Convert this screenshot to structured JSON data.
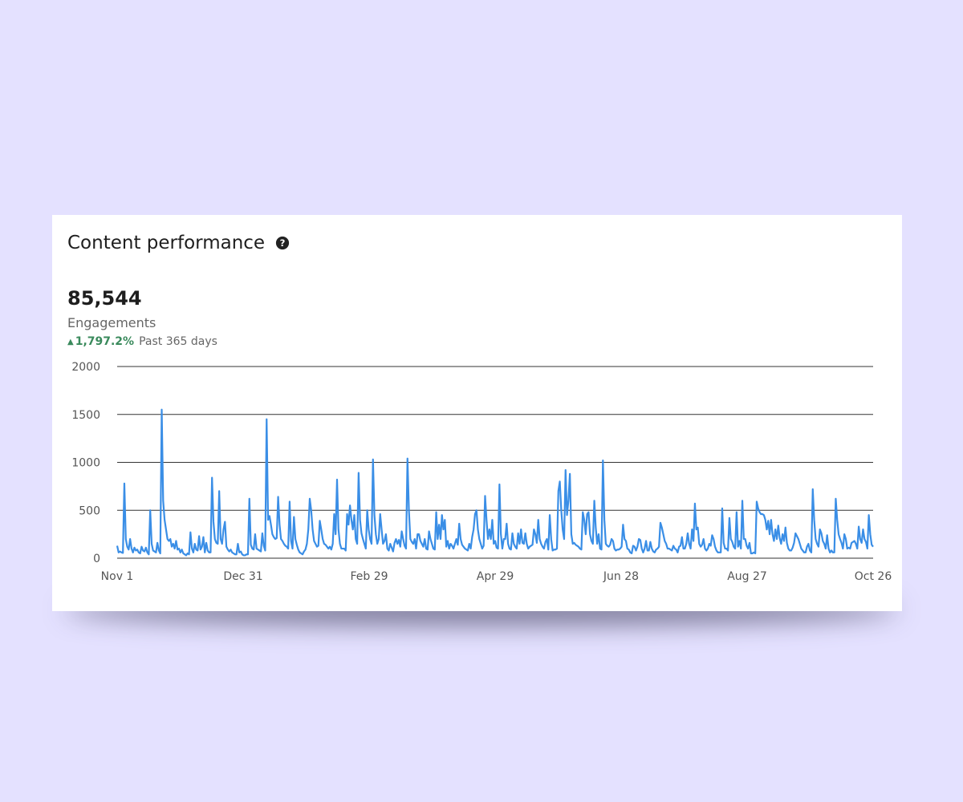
{
  "card": {
    "title": "Content performance",
    "help_icon": "question-circle-icon",
    "metric_value": "85,544",
    "metric_label": "Engagements",
    "change_icon": "triangle-up-icon",
    "change_value": "1,797.2%",
    "change_period": "Past 365 days"
  },
  "colors": {
    "line": "#3a8ee6",
    "positive": "#3a8a5c",
    "gridline": "#333333",
    "page_background": "#e4e1ff"
  },
  "chart_data": {
    "type": "line",
    "title": "",
    "xlabel": "",
    "ylabel": "",
    "ylim": [
      0,
      2000
    ],
    "yticks": [
      "0",
      "500",
      "1000",
      "1500",
      "2000"
    ],
    "xticks": [
      "Nov 1",
      "Dec 31",
      "Feb 29",
      "Apr 29",
      "Jun 28",
      "Aug 27",
      "Oct 26"
    ],
    "x_start": "Nov 1",
    "x_end": "Oct 26",
    "grid": true,
    "legend": "none",
    "series": [
      {
        "values": [
          130,
          60,
          70,
          60,
          55,
          780,
          200,
          120,
          90,
          200,
          100,
          60,
          110,
          80,
          90,
          60,
          50,
          120,
          80,
          70,
          110,
          60,
          40,
          500,
          150,
          80,
          70,
          60,
          160,
          80,
          50,
          1550,
          600,
          400,
          300,
          200,
          180,
          200,
          120,
          150,
          100,
          180,
          90,
          100,
          60,
          90,
          50,
          40,
          30,
          50,
          40,
          270,
          100,
          60,
          150,
          90,
          80,
          230,
          90,
          120,
          220,
          60,
          160,
          80,
          60,
          60,
          840,
          380,
          200,
          160,
          150,
          700,
          200,
          150,
          300,
          380,
          120,
          90,
          70,
          90,
          60,
          50,
          40,
          40,
          150,
          60,
          70,
          40,
          30,
          30,
          40,
          40,
          620,
          140,
          100,
          90,
          250,
          100,
          90,
          80,
          70,
          260,
          130,
          80,
          1450,
          400,
          440,
          350,
          250,
          220,
          200,
          210,
          640,
          350,
          200,
          180,
          150,
          130,
          120,
          100,
          590,
          180,
          100,
          430,
          200,
          140,
          90,
          60,
          50,
          40,
          70,
          90,
          150,
          300,
          620,
          500,
          300,
          180,
          150,
          120,
          130,
          390,
          300,
          200,
          150,
          140,
          120,
          100,
          120,
          90,
          150,
          460,
          250,
          820,
          300,
          150,
          100,
          100,
          100,
          80,
          460,
          350,
          550,
          400,
          300,
          450,
          200,
          150,
          890,
          400,
          260,
          200,
          150,
          100,
          500,
          300,
          200,
          150,
          1030,
          450,
          250,
          150,
          200,
          460,
          300,
          150,
          180,
          250,
          100,
          80,
          150,
          110,
          70,
          160,
          200,
          150,
          190,
          120,
          280,
          200,
          130,
          100,
          1040,
          500,
          200,
          170,
          150,
          200,
          100,
          250,
          250,
          180,
          150,
          120,
          200,
          100,
          90,
          280,
          200,
          150,
          100,
          90,
          480,
          200,
          350,
          200,
          450,
          300,
          400,
          120,
          180,
          100,
          150,
          130,
          100,
          150,
          200,
          140,
          360,
          200,
          140,
          120,
          100,
          90,
          80,
          150,
          100,
          220,
          300,
          460,
          500,
          300,
          200,
          150,
          100,
          130,
          650,
          400,
          200,
          300,
          200,
          400,
          150,
          180,
          110,
          100,
          770,
          250,
          100,
          200,
          200,
          360,
          150,
          100,
          90,
          260,
          150,
          120,
          100,
          260,
          150,
          300,
          160,
          150,
          260,
          150,
          100,
          120,
          130,
          140,
          300,
          250,
          160,
          400,
          200,
          150,
          120,
          100,
          170,
          200,
          90,
          450,
          200,
          80,
          90,
          90,
          100,
          700,
          800,
          500,
          300,
          200,
          920,
          450,
          600,
          880,
          250,
          150,
          160,
          140,
          130,
          120,
          100,
          90,
          480,
          400,
          250,
          460,
          480,
          250,
          180,
          150,
          600,
          320,
          150,
          250,
          100,
          90,
          1020,
          400,
          150,
          130,
          120,
          140,
          200,
          180,
          100,
          80,
          90,
          90,
          100,
          120,
          350,
          200,
          180,
          100,
          90,
          60,
          50,
          130,
          120,
          80,
          120,
          200,
          190,
          100,
          60,
          100,
          180,
          80,
          80,
          170,
          100,
          70,
          60,
          90,
          100,
          120,
          370,
          320,
          250,
          180,
          150,
          100,
          100,
          90,
          80,
          130,
          100,
          90,
          60,
          120,
          130,
          220,
          100,
          100,
          150,
          260,
          150,
          100,
          300,
          180,
          570,
          300,
          320,
          150,
          120,
          140,
          200,
          100,
          80,
          100,
          150,
          130,
          240,
          200,
          120,
          80,
          60,
          60,
          60,
          520,
          160,
          100,
          100,
          80,
          420,
          200,
          170,
          120,
          100,
          480,
          120,
          180,
          100,
          600,
          200,
          200,
          130,
          100,
          160,
          50,
          50,
          60,
          50,
          590,
          520,
          480,
          460,
          460,
          450,
          400,
          300,
          390,
          250,
          400,
          250,
          180,
          300,
          200,
          340,
          210,
          150,
          250,
          180,
          320,
          160,
          100,
          80,
          80,
          110,
          160,
          260,
          230,
          200,
          150,
          100,
          80,
          60,
          60,
          120,
          150,
          80,
          60,
          720,
          400,
          200,
          150,
          120,
          300,
          260,
          180,
          150,
          100,
          240,
          100,
          60,
          80,
          60,
          60,
          620,
          400,
          250,
          200,
          160,
          100,
          250,
          200,
          100,
          110,
          100,
          160,
          170,
          180,
          150,
          100,
          330,
          200,
          160,
          300,
          200,
          170,
          100,
          450,
          250,
          140,
          120
        ]
      }
    ]
  }
}
